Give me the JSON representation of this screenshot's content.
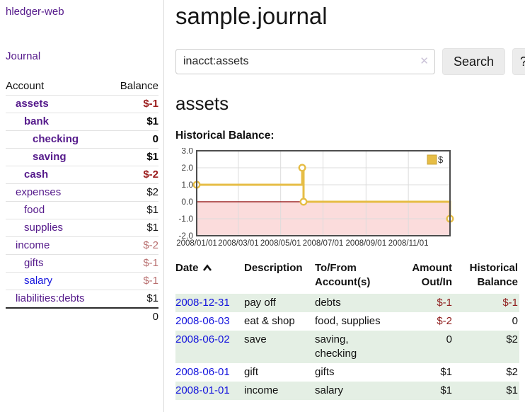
{
  "brand": "hledger-web",
  "nav": {
    "journal_label": "Journal"
  },
  "sidebar_table": {
    "headers": {
      "account": "Account",
      "balance": "Balance"
    },
    "rows": [
      {
        "name": "assets",
        "indent": 1,
        "bold": true,
        "link_color": "purple",
        "balance": "$-1",
        "bal_style": "neg-strong"
      },
      {
        "name": "bank",
        "indent": 2,
        "bold": true,
        "link_color": "purple",
        "balance": "$1",
        "bal_style": "pos-strong"
      },
      {
        "name": "checking",
        "indent": 3,
        "bold": true,
        "link_color": "purple",
        "balance": "0",
        "bal_style": "pos-strong"
      },
      {
        "name": "saving",
        "indent": 3,
        "bold": true,
        "link_color": "purple",
        "balance": "$1",
        "bal_style": "pos-strong"
      },
      {
        "name": "cash",
        "indent": 2,
        "bold": true,
        "link_color": "purple",
        "balance": "$-2",
        "bal_style": "neg-strong"
      },
      {
        "name": "expenses",
        "indent": 1,
        "bold": false,
        "link_color": "purple",
        "balance": "$2",
        "bal_style": "pos"
      },
      {
        "name": "food",
        "indent": 2,
        "bold": false,
        "link_color": "purple",
        "balance": "$1",
        "bal_style": "pos"
      },
      {
        "name": "supplies",
        "indent": 2,
        "bold": false,
        "link_color": "purple",
        "balance": "$1",
        "bal_style": "pos"
      },
      {
        "name": "income",
        "indent": 1,
        "bold": false,
        "link_color": "purple",
        "balance": "$-2",
        "bal_style": "neg-soft"
      },
      {
        "name": "gifts",
        "indent": 2,
        "bold": false,
        "link_color": "purple",
        "balance": "$-1",
        "bal_style": "neg-soft"
      },
      {
        "name": "salary",
        "indent": 2,
        "bold": false,
        "link_color": "blue",
        "balance": "$-1",
        "bal_style": "neg-soft"
      },
      {
        "name": "liabilities:debts",
        "indent": 1,
        "bold": false,
        "link_color": "purple",
        "balance": "$1",
        "bal_style": "pos"
      }
    ],
    "total": "0"
  },
  "header": {
    "title": "sample.journal"
  },
  "search": {
    "value": "inacct:assets",
    "clear_icon": "✕",
    "button_label": "Search",
    "help_label": "?"
  },
  "account_page": {
    "heading": "assets",
    "chart_label": "Historical Balance:"
  },
  "chart_data": {
    "type": "line",
    "subtype": "step-after",
    "title": "Historical Balance:",
    "series": [
      {
        "name": "$",
        "color": "#e6bd45",
        "points": [
          [
            "2008-01-01",
            1
          ],
          [
            "2008-06-01",
            2
          ],
          [
            "2008-06-03",
            0
          ],
          [
            "2008-12-31",
            -1
          ]
        ]
      }
    ],
    "x_range": [
      "2008/01/01",
      "2008/12/31"
    ],
    "x_ticks": [
      "2008/01/01",
      "2008/03/01",
      "2008/05/01",
      "2008/07/01",
      "2008/09/01",
      "2008/11/01"
    ],
    "y_ticks": [
      3.0,
      2.0,
      1.0,
      0.0,
      -1.0,
      -2.0
    ],
    "ylim": [
      -2,
      3
    ],
    "grid": true,
    "negative_fill": "#fbdcdc",
    "zero_line_color": "#8b0000",
    "border_color": "#4d4d4d",
    "legend": {
      "label": "$",
      "position": "top-right"
    }
  },
  "register": {
    "headers": {
      "date": "Date",
      "description": "Description",
      "accounts": "To/From Account(s)",
      "amount": "Amount Out/In",
      "balance": "Historical Balance"
    },
    "rows": [
      {
        "date": "2008-12-31",
        "description": "pay off",
        "accounts": "debts",
        "amount": "$-1",
        "amount_neg": true,
        "balance": "$-1",
        "balance_neg": true
      },
      {
        "date": "2008-06-03",
        "description": "eat & shop",
        "accounts": "food, supplies",
        "amount": "$-2",
        "amount_neg": true,
        "balance": "0",
        "balance_neg": false
      },
      {
        "date": "2008-06-02",
        "description": "save",
        "accounts": "saving,\nchecking",
        "amount": "0",
        "amount_neg": false,
        "balance": "$2",
        "balance_neg": false
      },
      {
        "date": "2008-06-01",
        "description": "gift",
        "accounts": "gifts",
        "amount": "$1",
        "amount_neg": false,
        "balance": "$2",
        "balance_neg": false
      },
      {
        "date": "2008-01-01",
        "description": "income",
        "accounts": "salary",
        "amount": "$1",
        "amount_neg": false,
        "balance": "$1",
        "balance_neg": false
      }
    ]
  }
}
